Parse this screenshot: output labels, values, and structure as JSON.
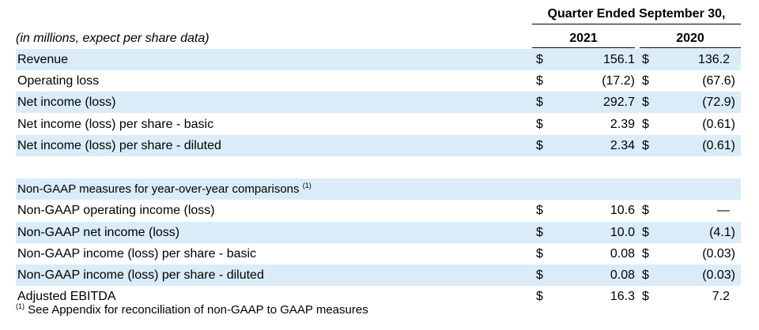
{
  "header": {
    "period_title": "Quarter Ended September 30,",
    "units_note": "(in millions, expect per share data)",
    "years": [
      "2021",
      "2020"
    ]
  },
  "currency_symbol": "$",
  "rows": [
    {
      "label": "Revenue",
      "shaded": true,
      "v2021": "156.1",
      "v2020": "136.2",
      "dollar": true
    },
    {
      "label": "Operating loss",
      "shaded": false,
      "v2021": "(17.2)",
      "v2020": "(67.6)",
      "dollar": true
    },
    {
      "label": "Net income (loss)",
      "shaded": true,
      "v2021": "292.7",
      "v2020": "(72.9)",
      "dollar": true
    },
    {
      "label": "Net income (loss) per share - basic",
      "shaded": false,
      "v2021": "2.39",
      "v2020": "(0.61)",
      "dollar": true
    },
    {
      "label": "Net income (loss) per share - diluted",
      "shaded": true,
      "v2021": "2.34",
      "v2020": "(0.61)",
      "dollar": true
    },
    {
      "label": "",
      "shaded": false,
      "v2021": "",
      "v2020": "",
      "dollar": false
    },
    {
      "label": "Non-GAAP measures for year-over-year comparisons",
      "sup": "(1)",
      "shaded": true,
      "v2021": "",
      "v2020": "",
      "dollar": false,
      "small": true
    },
    {
      "label": "Non-GAAP operating income (loss)",
      "shaded": false,
      "v2021": "10.6",
      "v2020": "—",
      "dollar": true
    },
    {
      "label": "Non-GAAP net income (loss)",
      "shaded": true,
      "v2021": "10.0",
      "v2020": "(4.1)",
      "dollar": true
    },
    {
      "label": "Non-GAAP  income (loss) per share - basic",
      "shaded": false,
      "v2021": "0.08",
      "v2020": "(0.03)",
      "dollar": true
    },
    {
      "label": "Non-GAAP income (loss) per share - diluted",
      "shaded": true,
      "v2021": "0.08",
      "v2020": "(0.03)",
      "dollar": true
    },
    {
      "label": "Adjusted EBITDA",
      "shaded": false,
      "v2021": "16.3",
      "v2020": "7.2",
      "dollar": true
    }
  ],
  "footnote": {
    "marker": "(1)",
    "text": "See Appendix for reconciliation of non-GAAP to GAAP measures"
  }
}
